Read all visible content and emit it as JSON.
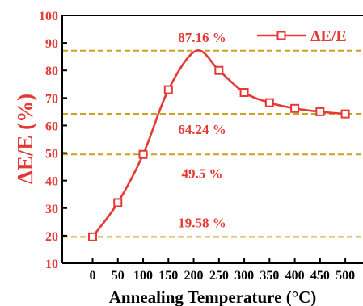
{
  "chart_data": {
    "type": "line",
    "xlabel": "Annealing Temperature (°C)",
    "ylabel": "ΔE/E (%)",
    "xlim": [
      -60,
      535
    ],
    "ylim": [
      10,
      100
    ],
    "x_ticks": [
      0,
      50,
      100,
      150,
      200,
      250,
      300,
      350,
      400,
      450,
      500
    ],
    "y_ticks": [
      10,
      20,
      30,
      40,
      50,
      60,
      70,
      80,
      90,
      100
    ],
    "legend_position": "top-right",
    "series": [
      {
        "name": "ΔE/E",
        "x": [
          0,
          50,
          100,
          150,
          250,
          300,
          350,
          400,
          450,
          500
        ],
        "values": [
          19.58,
          32,
          49.5,
          73,
          80,
          72,
          68.3,
          66.2,
          65,
          64.2
        ]
      }
    ],
    "fitted_peak": {
      "x": 205,
      "y": 87.16
    },
    "reference_lines": [
      {
        "value": 87.16,
        "label": "87.16 %"
      },
      {
        "value": 64.24,
        "label": "64.24 %"
      },
      {
        "value": 49.5,
        "label": "49.5 %"
      },
      {
        "value": 19.58,
        "label": "19.58 %"
      }
    ],
    "colors": {
      "series": "#e53935",
      "reference": "#c9a21f",
      "axis": "#000000"
    }
  }
}
